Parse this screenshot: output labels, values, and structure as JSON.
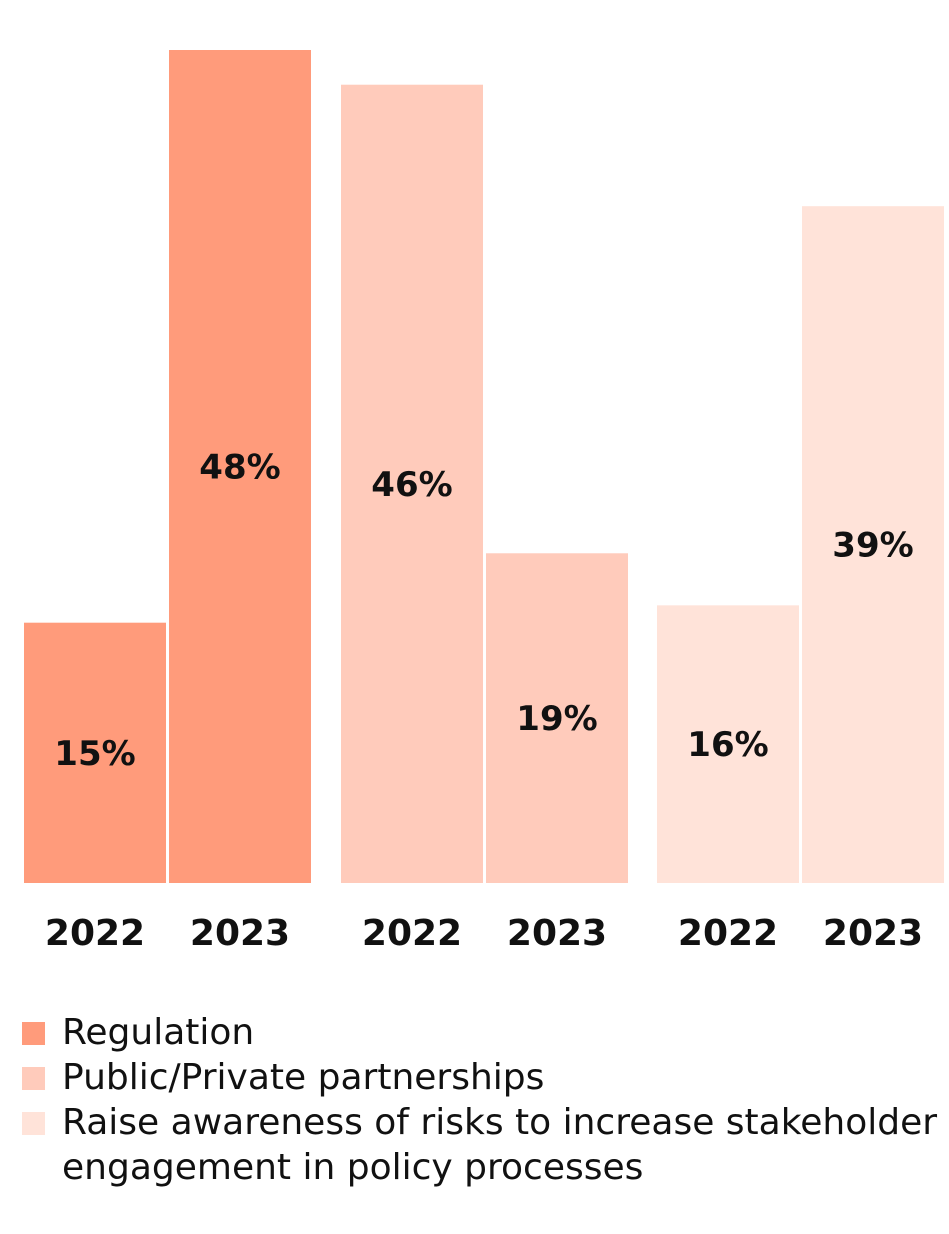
{
  "chart_data": {
    "type": "bar",
    "categories": [
      "2022",
      "2023",
      "2022",
      "2023",
      "2022",
      "2023"
    ],
    "groups": [
      {
        "name": "Regulation",
        "color": "#FF9B7B",
        "values": [
          {
            "year": "2022",
            "value": 15,
            "label": "15%"
          },
          {
            "year": "2023",
            "value": 48,
            "label": "48%"
          }
        ]
      },
      {
        "name": "Public/Private partnerships",
        "color": "#FFCBBB",
        "values": [
          {
            "year": "2022",
            "value": 46,
            "label": "46%"
          },
          {
            "year": "2023",
            "value": 19,
            "label": "19%"
          }
        ]
      },
      {
        "name": "Raise awareness of risks to increase stakeholder engagement in policy processes",
        "color": "#FFE3D9",
        "values": [
          {
            "year": "2022",
            "value": 16,
            "label": "16%"
          },
          {
            "year": "2023",
            "value": 39,
            "label": "39%"
          }
        ]
      }
    ],
    "ylim": [
      0,
      48
    ],
    "grid": false,
    "legend_position": "bottom-left",
    "value_unit": "%"
  },
  "legend": {
    "items": [
      {
        "label": "Regulation",
        "color": "#FF9B7B"
      },
      {
        "label": "Public/Private partnerships",
        "color": "#FFCBBB"
      },
      {
        "label": "Raise awareness of risks to increase stakeholder engagement in policy processes",
        "color": "#FFE3D9"
      }
    ]
  }
}
